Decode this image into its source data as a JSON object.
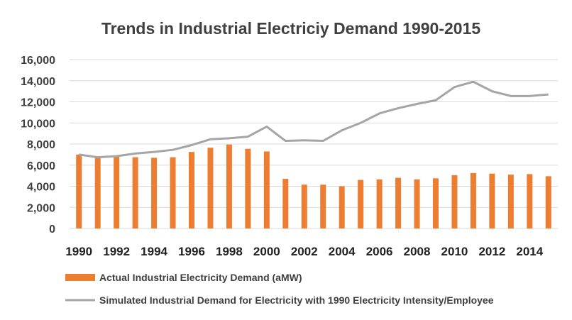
{
  "chart_data": {
    "type": "bar",
    "title": "Trends in Industrial Electriciy Demand 1990-2015",
    "xlabel": "",
    "ylabel": "",
    "ylim": [
      0,
      16000
    ],
    "yticks": [
      0,
      2000,
      4000,
      6000,
      8000,
      10000,
      12000,
      14000,
      16000
    ],
    "ytick_labels": [
      "0",
      "2,000",
      "4,000",
      "6,000",
      "8,000",
      "10,000",
      "12,000",
      "14,000",
      "16,000"
    ],
    "grid": true,
    "legend_position": "bottom",
    "categories": [
      1990,
      1991,
      1992,
      1993,
      1994,
      1995,
      1996,
      1997,
      1998,
      1999,
      2000,
      2001,
      2002,
      2003,
      2004,
      2005,
      2006,
      2007,
      2008,
      2009,
      2010,
      2011,
      2012,
      2013,
      2014,
      2015
    ],
    "xtick_labels": [
      "1990",
      "1992",
      "1994",
      "1996",
      "1998",
      "2000",
      "2002",
      "2004",
      "2006",
      "2008",
      "2010",
      "2012",
      "2014"
    ],
    "series": [
      {
        "name": "Actual Industrial Electricity Demand (aMW)",
        "type": "bar",
        "color": "#ED7D31",
        "values": [
          7000,
          6700,
          6800,
          6750,
          6700,
          6750,
          7250,
          7650,
          7950,
          7550,
          7300,
          4700,
          4150,
          4150,
          4000,
          4600,
          4650,
          4800,
          4650,
          4750,
          5050,
          5250,
          5200,
          5100,
          5150,
          4950
        ]
      },
      {
        "name": "Simulated Industrial Demand for Electricity with 1990 Electricity Intensity/Employee",
        "type": "line",
        "color": "#A5A5A5",
        "values": [
          7000,
          6750,
          6850,
          7100,
          7250,
          7450,
          7900,
          8450,
          8550,
          8700,
          9650,
          8300,
          8350,
          8300,
          9300,
          10000,
          10900,
          11400,
          11800,
          12150,
          13400,
          13900,
          13000,
          12550,
          12550,
          12700
        ]
      }
    ]
  }
}
